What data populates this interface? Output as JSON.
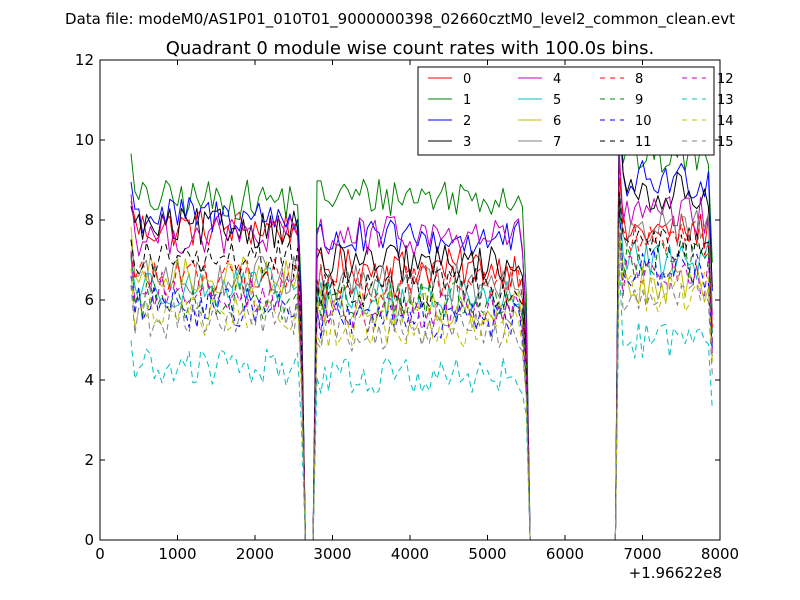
{
  "chart_data": {
    "type": "line",
    "suptitle": "Data file: modeM0/AS1P01_010T01_9000000398_02660cztM0_level2_common_clean.evt",
    "title": "Quadrant 0 module wise count rates with 100.0s bins.",
    "xlabel": "",
    "ylabel": "",
    "xlim": [
      0,
      8000
    ],
    "ylim": [
      0,
      12
    ],
    "x_offset_label": "+1.96622e8",
    "xticks": [
      0,
      1000,
      2000,
      3000,
      4000,
      5000,
      6000,
      7000,
      8000
    ],
    "xtick_labels": [
      "0",
      "1000",
      "2000",
      "3000",
      "4000",
      "5000",
      "6000",
      "7000",
      "8000"
    ],
    "yticks": [
      0,
      2,
      4,
      6,
      8,
      10,
      12
    ],
    "ytick_labels": [
      "0",
      "2",
      "4",
      "6",
      "8",
      "10",
      "12"
    ],
    "legend_location": "upper right",
    "legend_columns": 4,
    "segments": [
      {
        "x_start": 400,
        "x_end": 2600
      },
      {
        "x_start": 2800,
        "x_end": 5500
      },
      {
        "x_start": 6700,
        "x_end": 7900
      }
    ],
    "series": [
      {
        "name": "0",
        "color": "#ff0000",
        "dash": "solid",
        "levels": [
          7.8,
          6.8,
          7.7
        ]
      },
      {
        "name": "1",
        "color": "#008000",
        "dash": "solid",
        "levels": [
          8.5,
          8.6,
          9.6
        ]
      },
      {
        "name": "2",
        "color": "#0000ff",
        "dash": "solid",
        "levels": [
          8.1,
          7.5,
          9.0
        ]
      },
      {
        "name": "3",
        "color": "#000000",
        "dash": "solid",
        "levels": [
          7.8,
          6.9,
          8.7
        ]
      },
      {
        "name": "4",
        "color": "#bf00bf",
        "dash": "solid",
        "levels": [
          7.6,
          7.6,
          8.1
        ]
      },
      {
        "name": "5",
        "color": "#00bfbf",
        "dash": "solid",
        "levels": [
          6.3,
          6.0,
          7.0
        ]
      },
      {
        "name": "6",
        "color": "#bfbf00",
        "dash": "solid",
        "levels": [
          6.6,
          5.8,
          6.4
        ]
      },
      {
        "name": "7",
        "color": "#808080",
        "dash": "solid",
        "levels": [
          6.6,
          6.4,
          7.8
        ]
      },
      {
        "name": "8",
        "color": "#ff0000",
        "dash": "dashed",
        "levels": [
          6.6,
          6.4,
          7.6
        ]
      },
      {
        "name": "9",
        "color": "#008000",
        "dash": "dashed",
        "levels": [
          6.0,
          6.0,
          7.0
        ]
      },
      {
        "name": "10",
        "color": "#0000ff",
        "dash": "dashed",
        "levels": [
          5.8,
          5.5,
          6.8
        ]
      },
      {
        "name": "11",
        "color": "#000000",
        "dash": "dashed",
        "levels": [
          7.0,
          6.3,
          7.4
        ]
      },
      {
        "name": "12",
        "color": "#bf00bf",
        "dash": "dashed",
        "levels": [
          6.2,
          5.7,
          6.6
        ]
      },
      {
        "name": "13",
        "color": "#00bfbf",
        "dash": "dashed",
        "levels": [
          4.3,
          4.1,
          5.0
        ]
      },
      {
        "name": "14",
        "color": "#bfbf00",
        "dash": "dashed",
        "levels": [
          5.6,
          5.3,
          6.2
        ]
      },
      {
        "name": "15",
        "color": "#808080",
        "dash": "dashed",
        "levels": [
          5.5,
          5.2,
          6.2
        ]
      }
    ]
  }
}
